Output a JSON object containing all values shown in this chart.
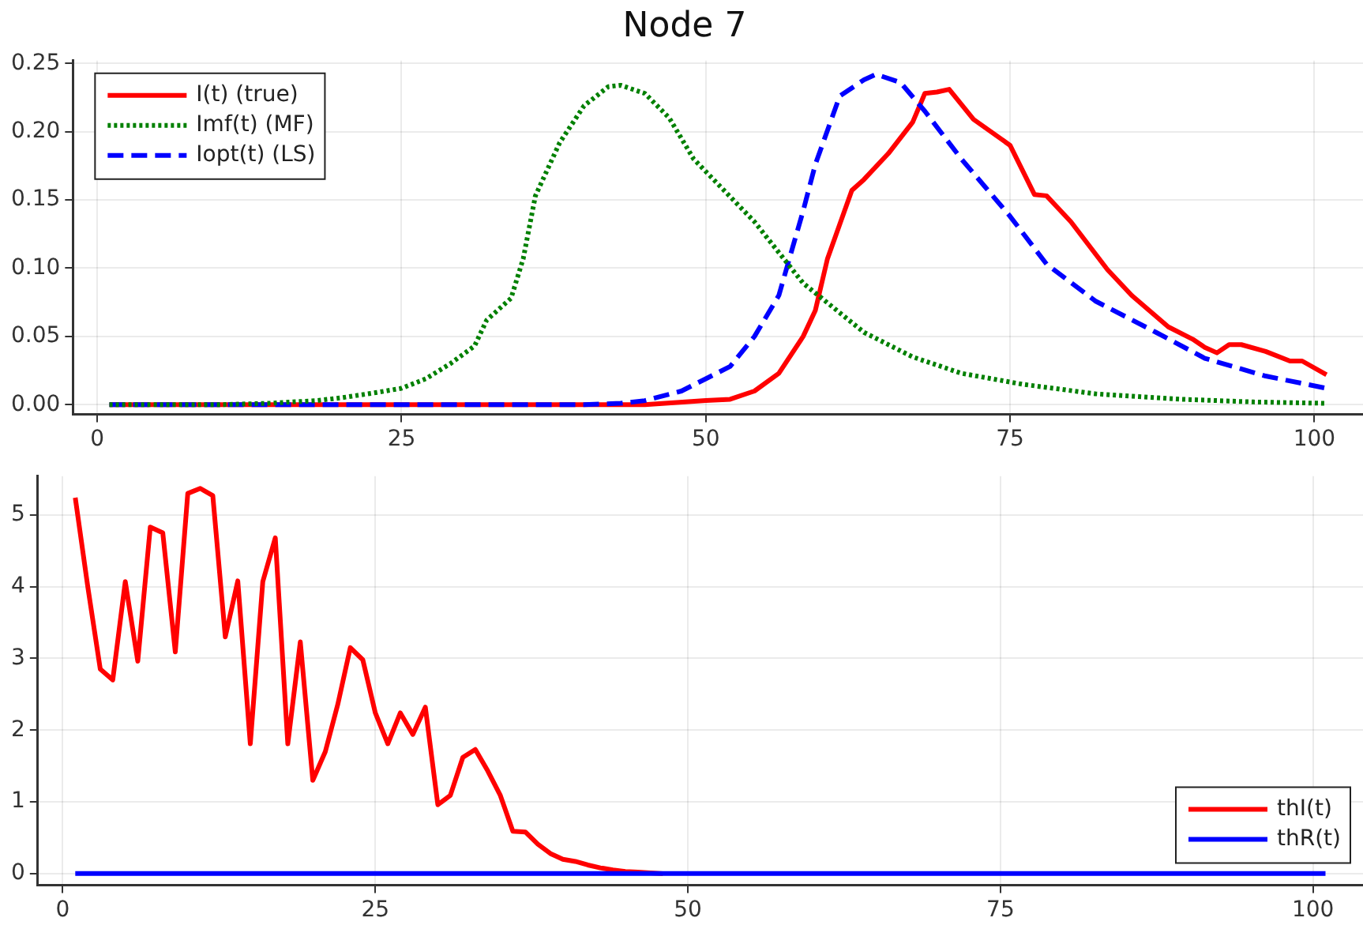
{
  "chart_data": [
    {
      "type": "line",
      "title": "Node 7",
      "xlim": [
        -2,
        104
      ],
      "xticks": [
        0,
        25,
        50,
        75,
        100
      ],
      "ylim": [
        -0.007,
        0.252
      ],
      "yticks": [
        {
          "value": 0,
          "label": "0.00"
        },
        {
          "value": 0.05,
          "label": "0.05"
        },
        {
          "value": 0.1,
          "label": "0.10"
        },
        {
          "value": 0.15,
          "label": "0.15"
        },
        {
          "value": 0.2,
          "label": "0.20"
        },
        {
          "value": 0.25,
          "label": "0.25"
        }
      ],
      "grid": true,
      "legend": "top left",
      "marker": "none",
      "series": [
        {
          "name": "I(t) (true)",
          "color": "#ff0000",
          "line_style": "solid",
          "x": [
            1,
            10,
            20,
            30,
            40,
            45,
            50,
            52,
            54,
            56,
            58,
            59,
            60,
            62,
            63,
            65,
            67,
            68,
            69,
            70,
            72,
            75,
            77,
            78,
            80,
            83,
            85,
            88,
            90,
            91,
            92,
            93,
            94,
            96,
            98,
            99,
            101
          ],
          "values": [
            0,
            0,
            0,
            0,
            0,
            0,
            0.003,
            0.004,
            0.01,
            0.023,
            0.05,
            0.069,
            0.107,
            0.157,
            0.165,
            0.184,
            0.207,
            0.228,
            0.229,
            0.231,
            0.209,
            0.19,
            0.154,
            0.153,
            0.134,
            0.099,
            0.08,
            0.057,
            0.048,
            0.042,
            0.038,
            0.044,
            0.044,
            0.039,
            0.032,
            0.032,
            0.022
          ]
        },
        {
          "name": "Imf(t) (MF)",
          "color": "#008000",
          "line_style": "dotted",
          "x": [
            1,
            10,
            14,
            18,
            20,
            23,
            25,
            27,
            29,
            31,
            32,
            34,
            35,
            36,
            38,
            40,
            42,
            43,
            45,
            47,
            49,
            54,
            58,
            63,
            67,
            71,
            76,
            82,
            89,
            95,
            101
          ],
          "values": [
            0,
            0,
            0.001,
            0.003,
            0.005,
            0.009,
            0.012,
            0.019,
            0.03,
            0.043,
            0.062,
            0.078,
            0.107,
            0.153,
            0.192,
            0.219,
            0.233,
            0.234,
            0.228,
            0.21,
            0.18,
            0.134,
            0.089,
            0.053,
            0.035,
            0.023,
            0.015,
            0.008,
            0.004,
            0.002,
            0.001
          ]
        },
        {
          "name": "Iopt(t) (LS)",
          "color": "#0000ff",
          "line_style": "dashed",
          "x": [
            1,
            20,
            30,
            40,
            43,
            45,
            48,
            50,
            52,
            54,
            56,
            58,
            59,
            61,
            63,
            64,
            66,
            68,
            71,
            75,
            78,
            82,
            87,
            91,
            96,
            101
          ],
          "values": [
            0,
            0,
            0,
            0,
            0.001,
            0.003,
            0.01,
            0.019,
            0.028,
            0.05,
            0.08,
            0.142,
            0.176,
            0.226,
            0.238,
            0.242,
            0.236,
            0.215,
            0.18,
            0.138,
            0.103,
            0.076,
            0.053,
            0.034,
            0.021,
            0.012
          ]
        }
      ]
    },
    {
      "type": "line",
      "xlim": [
        -2,
        104
      ],
      "xticks": [
        0,
        25,
        50,
        75,
        100
      ],
      "ylim": [
        -0.16,
        5.54
      ],
      "yticks": [
        0,
        1,
        2,
        3,
        4,
        5
      ],
      "grid": true,
      "legend": "bottom right",
      "marker": "none",
      "series": [
        {
          "name": "thI(t)",
          "color": "#ff0000",
          "line_style": "solid",
          "x": [
            1,
            2,
            3,
            4,
            5,
            6,
            7,
            8,
            9,
            10,
            11,
            12,
            13,
            14,
            15,
            16,
            17,
            18,
            19,
            20,
            21,
            22,
            23,
            24,
            25,
            26,
            27,
            28,
            29,
            30,
            31,
            32,
            33,
            34,
            35,
            36,
            37,
            38,
            39,
            40,
            41,
            42,
            43,
            44,
            45,
            46,
            47,
            48
          ],
          "values": [
            5.24,
            4.0,
            2.85,
            2.7,
            4.07,
            2.96,
            4.83,
            4.75,
            3.09,
            5.3,
            5.37,
            5.27,
            3.3,
            4.08,
            1.81,
            4.07,
            4.68,
            1.81,
            3.23,
            1.3,
            1.7,
            2.36,
            3.15,
            2.98,
            2.24,
            1.81,
            2.24,
            1.94,
            2.32,
            0.96,
            1.09,
            1.62,
            1.73,
            1.43,
            1.09,
            0.59,
            0.58,
            0.41,
            0.28,
            0.2,
            0.17,
            0.12,
            0.08,
            0.05,
            0.03,
            0.02,
            0.01,
            0
          ]
        },
        {
          "name": "thR(t)",
          "color": "#0000ff",
          "line_style": "solid",
          "x": [
            1,
            101
          ],
          "values": [
            0,
            0
          ]
        }
      ]
    }
  ]
}
